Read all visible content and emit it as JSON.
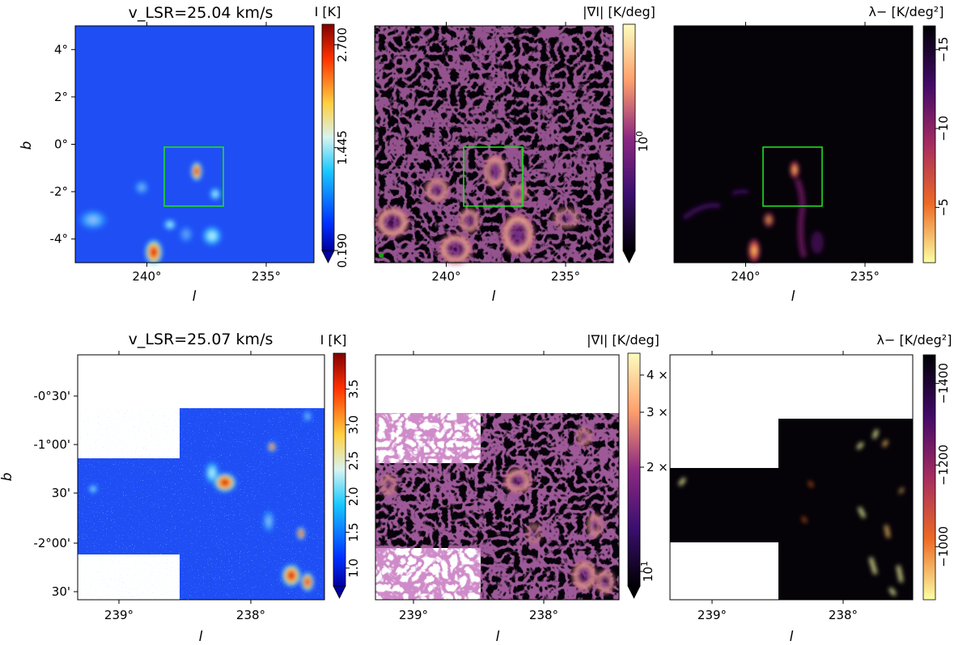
{
  "colors": {
    "jet_low": "#1f4ef5",
    "zoom_box": "#22dd22",
    "dark_bg": "#050208",
    "mask": "#ffffff"
  },
  "chart_data": [
    {
      "type": "heatmap",
      "title": "v_LSR=25.04 km/s",
      "xlabel": "l",
      "ylabel": "b",
      "xlim": [
        243,
        233
      ],
      "ylim": [
        -5,
        5
      ],
      "xticks": [
        "240°",
        "235°"
      ],
      "xtick_values": [
        240,
        235
      ],
      "yticks": [
        "4°",
        "2°",
        "0°",
        "-2°",
        "-4°"
      ],
      "ytick_values": [
        4,
        2,
        0,
        -2,
        -4
      ],
      "colormap": "jet",
      "colorbar_label": "I [K]",
      "colorbar_ticks": [
        "0.190",
        "1.445",
        "2.700"
      ],
      "colorbar_tick_values": [
        0.19,
        1.445,
        2.7
      ],
      "colorbar_range": [
        0.19,
        2.95
      ],
      "zoom_box": {
        "l": [
          239.2,
          236.6
        ],
        "b": [
          -2.6,
          -0.1
        ]
      }
    },
    {
      "type": "heatmap",
      "xlabel": "l",
      "xlim": [
        243,
        233
      ],
      "xticks": [
        "240°",
        "235°"
      ],
      "xtick_values": [
        240,
        235
      ],
      "colormap": "magma",
      "colorbar_label": "|∇I| [K/deg]",
      "colorbar_ticks": [
        "10^0"
      ],
      "colorbar_scale": "log",
      "zoom_box": {
        "l": [
          239.2,
          236.6
        ],
        "b": [
          -2.6,
          -0.1
        ]
      }
    },
    {
      "type": "heatmap",
      "xlabel": "l",
      "xlim": [
        243,
        233
      ],
      "xticks": [
        "240°",
        "235°"
      ],
      "xtick_values": [
        240,
        235
      ],
      "colormap": "inferno_r",
      "colorbar_label": "λ− [K/deg²]",
      "colorbar_ticks": [
        "−5",
        "−10",
        "−15"
      ],
      "colorbar_tick_values": [
        -5,
        -10,
        -15
      ],
      "colorbar_range": [
        -16.5,
        -1.5
      ],
      "zoom_box": {
        "l": [
          239.2,
          236.6
        ],
        "b": [
          -2.6,
          -0.1
        ]
      }
    },
    {
      "type": "heatmap",
      "title": "v_LSR=25.07 km/s",
      "xlabel": "l",
      "ylabel": "b",
      "xticks": [
        "239°",
        "238°"
      ],
      "xtick_values": [
        239,
        238
      ],
      "yticks": [
        "-0°30'",
        "-1°00'",
        "30'",
        "-2°00'",
        "30'"
      ],
      "colormap": "jet",
      "colorbar_label": "I [K]",
      "colorbar_ticks": [
        "1.0",
        "1.5",
        "2.0",
        "2.5",
        "3.0",
        "3.5"
      ],
      "colorbar_tick_values": [
        1.0,
        1.5,
        2.0,
        2.5,
        3.0,
        3.5
      ],
      "colorbar_range": [
        0.75,
        4.0
      ]
    },
    {
      "type": "heatmap",
      "xlabel": "l",
      "xticks": [
        "239°",
        "238°"
      ],
      "xtick_values": [
        239,
        238
      ],
      "colormap": "magma",
      "colorbar_label": "|∇I| [K/deg]",
      "colorbar_ticks": [
        "4 ×",
        "3 ×",
        "2 ×",
        "10^1"
      ],
      "colorbar_scale": "log"
    },
    {
      "type": "heatmap",
      "xlabel": "l",
      "xticks": [
        "239°",
        "238°"
      ],
      "xtick_values": [
        239,
        238
      ],
      "colormap": "inferno_r",
      "colorbar_label": "λ− [K/deg²]",
      "colorbar_ticks": [
        "−1000",
        "−1200",
        "−1400"
      ],
      "colorbar_tick_values": [
        -1000,
        -1200,
        -1400
      ],
      "colorbar_range": [
        -1470,
        -870
      ]
    }
  ]
}
